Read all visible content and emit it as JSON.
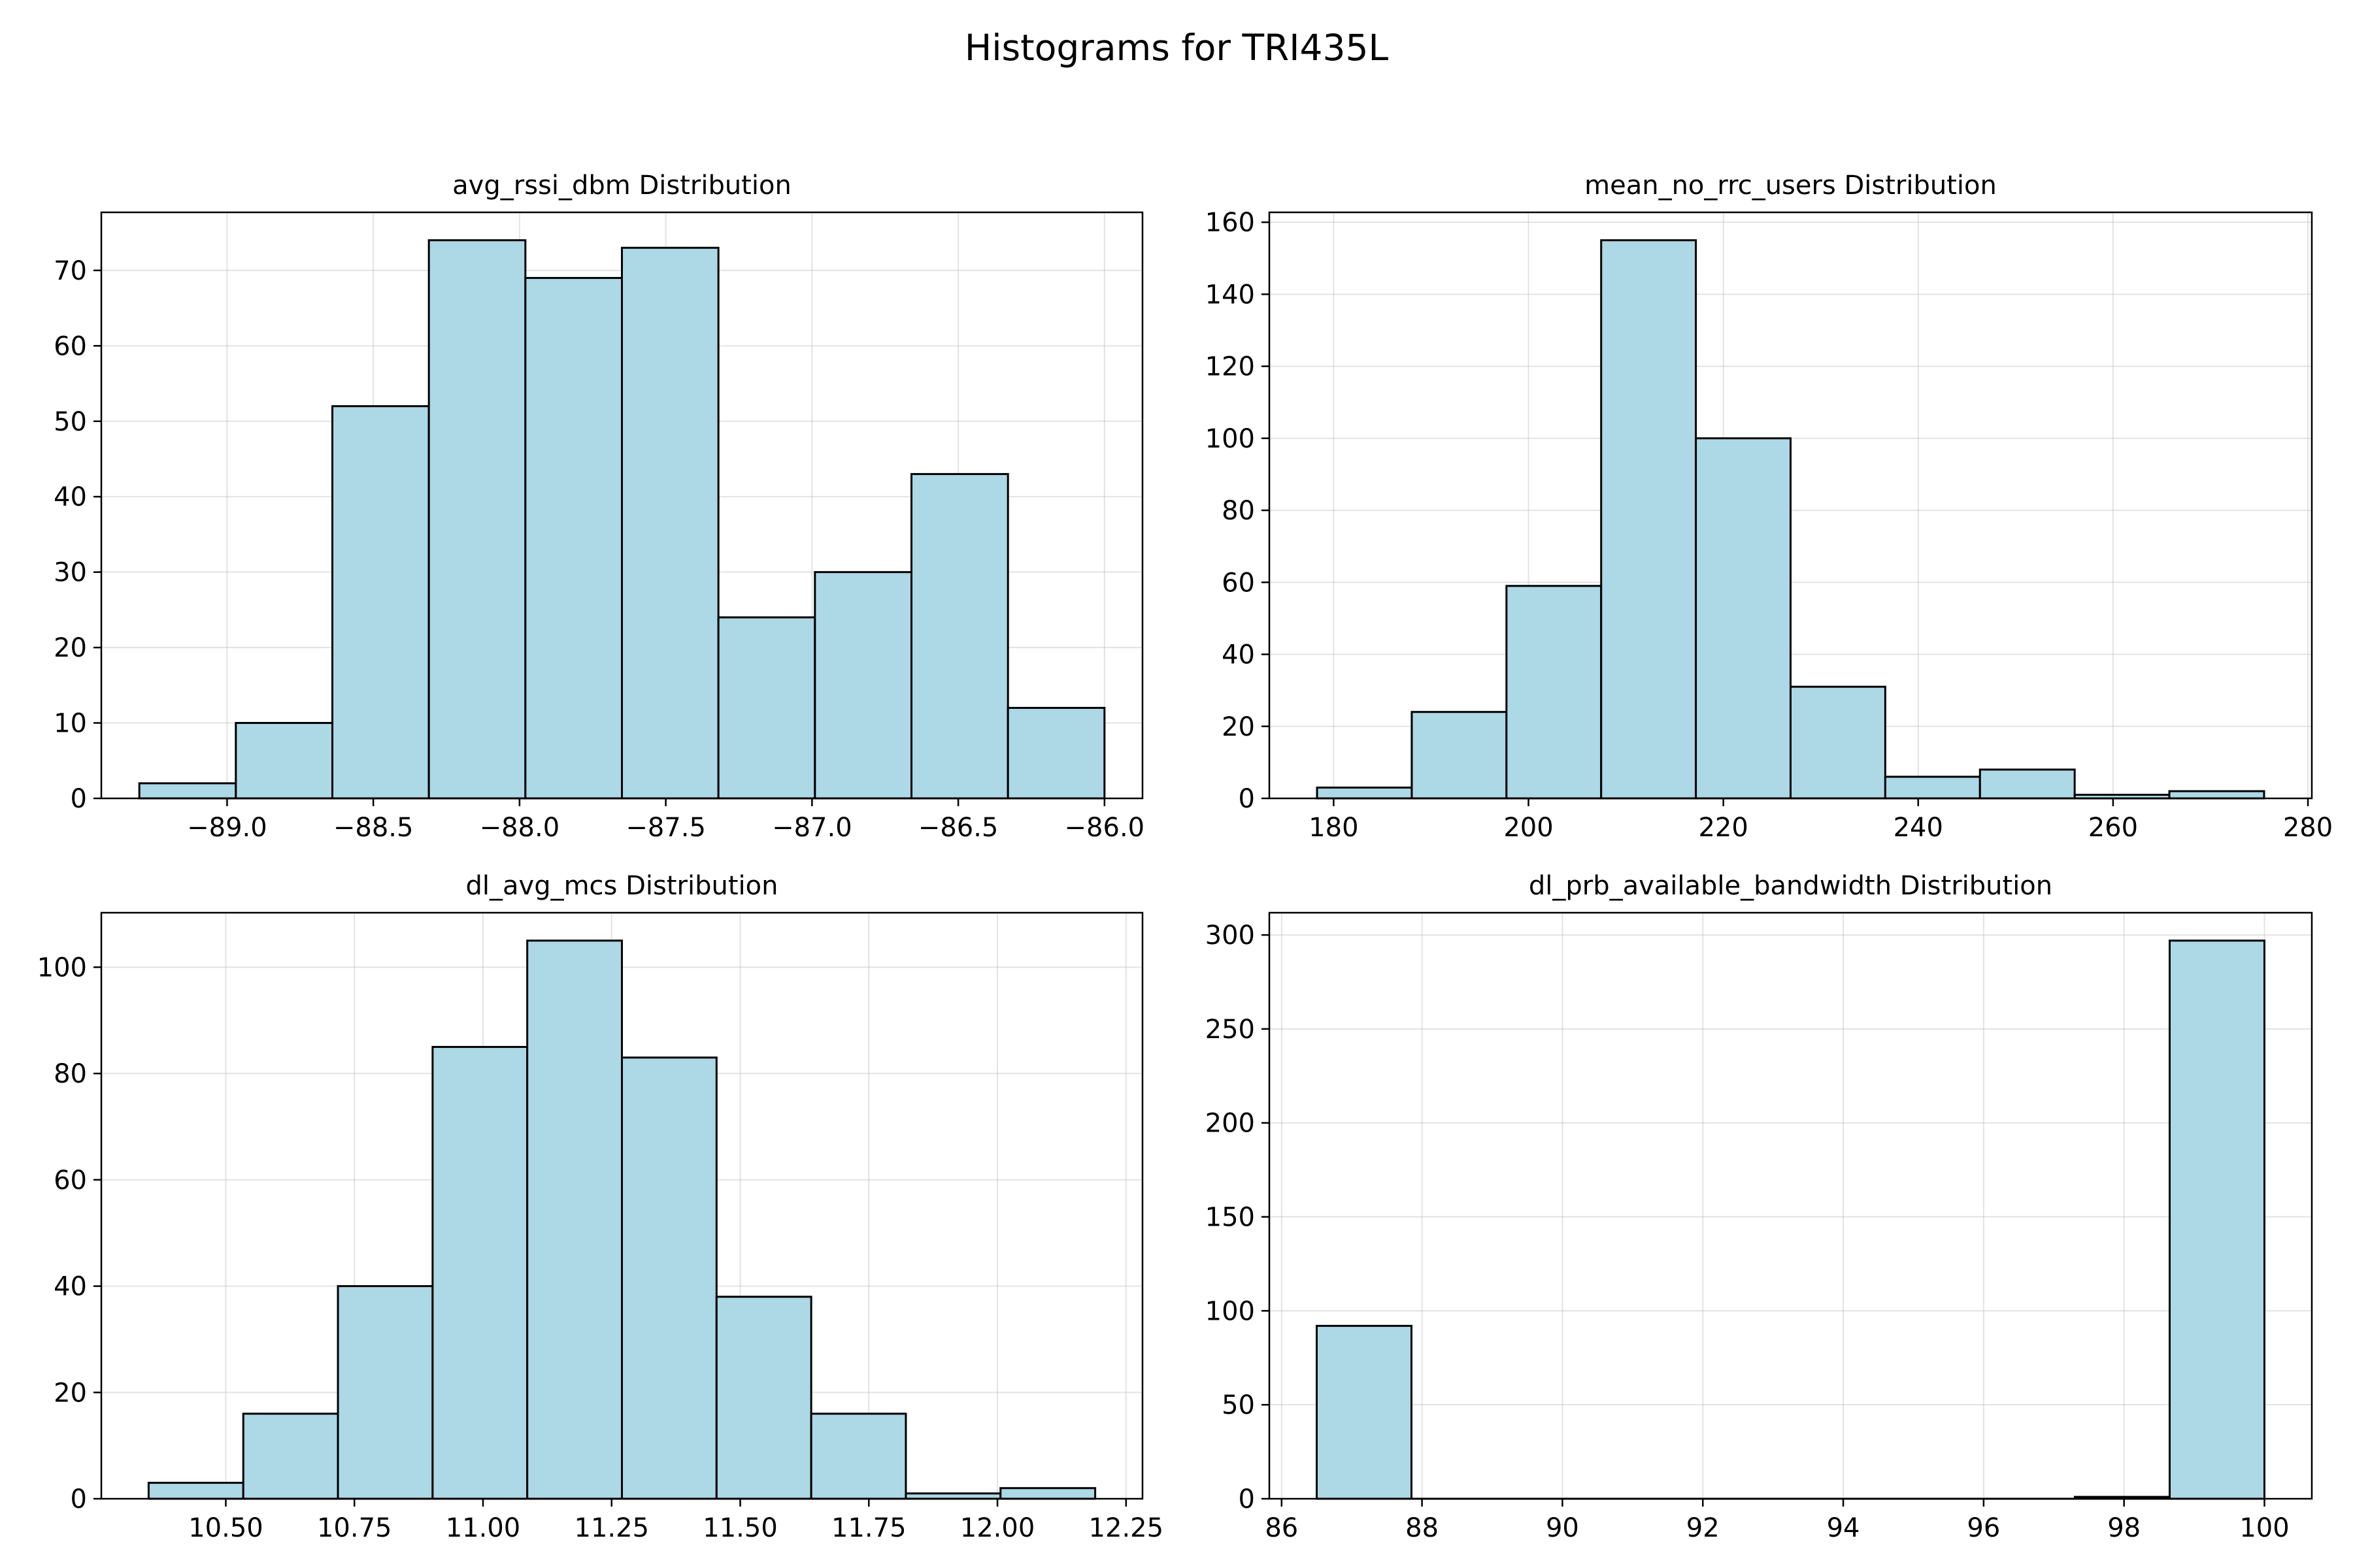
{
  "figure": {
    "title": "Histograms for TRI435L"
  },
  "chart_data": [
    {
      "type": "bar",
      "title": "avg_rssi_dbm Distribution",
      "bin_edges": [
        -89.3,
        -88.97,
        -88.64,
        -88.31,
        -87.98,
        -87.65,
        -87.32,
        -86.99,
        -86.66,
        -86.33,
        -86.0
      ],
      "values": [
        2,
        10,
        52,
        74,
        69,
        73,
        24,
        30,
        43,
        12
      ],
      "xlim": [
        -89.43,
        -85.87
      ],
      "ylim": [
        0,
        77.7
      ],
      "xticks": [
        -89.0,
        -88.5,
        -88.0,
        -87.5,
        -87.0,
        -86.5,
        -86.0
      ],
      "xtick_labels": [
        "−89.0",
        "−88.5",
        "−88.0",
        "−87.5",
        "−87.0",
        "−86.5",
        "−86.0"
      ],
      "yticks": [
        0,
        10,
        20,
        30,
        40,
        50,
        60,
        70
      ],
      "ytick_labels": [
        "0",
        "10",
        "20",
        "30",
        "40",
        "50",
        "60",
        "70"
      ],
      "grid": true
    },
    {
      "type": "bar",
      "title": "mean_no_rrc_users Distribution",
      "bin_edges": [
        178.3,
        188.02,
        197.74,
        207.46,
        217.18,
        226.9,
        236.62,
        246.34,
        256.06,
        265.78,
        275.5
      ],
      "values": [
        3,
        24,
        59,
        155,
        100,
        31,
        6,
        8,
        1,
        2
      ],
      "xlim": [
        173.4,
        280.4
      ],
      "ylim": [
        0,
        162.75
      ],
      "xticks": [
        180,
        200,
        220,
        240,
        260,
        280
      ],
      "xtick_labels": [
        "180",
        "200",
        "220",
        "240",
        "260",
        "280"
      ],
      "yticks": [
        0,
        20,
        40,
        60,
        80,
        100,
        120,
        140,
        160
      ],
      "ytick_labels": [
        "0",
        "20",
        "40",
        "60",
        "80",
        "100",
        "120",
        "140",
        "160"
      ],
      "grid": true
    },
    {
      "type": "bar",
      "title": "dl_avg_mcs Distribution",
      "bin_edges": [
        10.35,
        10.534,
        10.718,
        10.902,
        11.086,
        11.27,
        11.454,
        11.638,
        11.822,
        12.006,
        12.19
      ],
      "values": [
        3,
        16,
        40,
        85,
        105,
        83,
        38,
        16,
        1,
        2
      ],
      "xlim": [
        10.258,
        12.282
      ],
      "ylim": [
        0,
        110.25
      ],
      "xticks": [
        10.5,
        10.75,
        11.0,
        11.25,
        11.5,
        11.75,
        12.0,
        12.25
      ],
      "xtick_labels": [
        "10.50",
        "10.75",
        "11.00",
        "11.25",
        "11.50",
        "11.75",
        "12.00",
        "12.25"
      ],
      "yticks": [
        0,
        20,
        40,
        60,
        80,
        100
      ],
      "ytick_labels": [
        "0",
        "20",
        "40",
        "60",
        "80",
        "100"
      ],
      "grid": true
    },
    {
      "type": "bar",
      "title": "dl_prb_available_bandwidth Distribution",
      "bin_edges": [
        86.5,
        87.85,
        89.2,
        90.55,
        91.9,
        93.25,
        94.6,
        95.95,
        97.3,
        98.65,
        100.0
      ],
      "values": [
        92,
        0,
        0,
        0,
        0,
        0,
        0,
        0,
        1,
        297
      ],
      "xlim": [
        85.825,
        100.675
      ],
      "ylim": [
        0,
        311.85
      ],
      "xticks": [
        86,
        88,
        90,
        92,
        94,
        96,
        98,
        100
      ],
      "xtick_labels": [
        "86",
        "88",
        "90",
        "92",
        "94",
        "96",
        "98",
        "100"
      ],
      "yticks": [
        0,
        50,
        100,
        150,
        200,
        250,
        300
      ],
      "ytick_labels": [
        "0",
        "50",
        "100",
        "150",
        "200",
        "250",
        "300"
      ],
      "grid": true
    }
  ]
}
